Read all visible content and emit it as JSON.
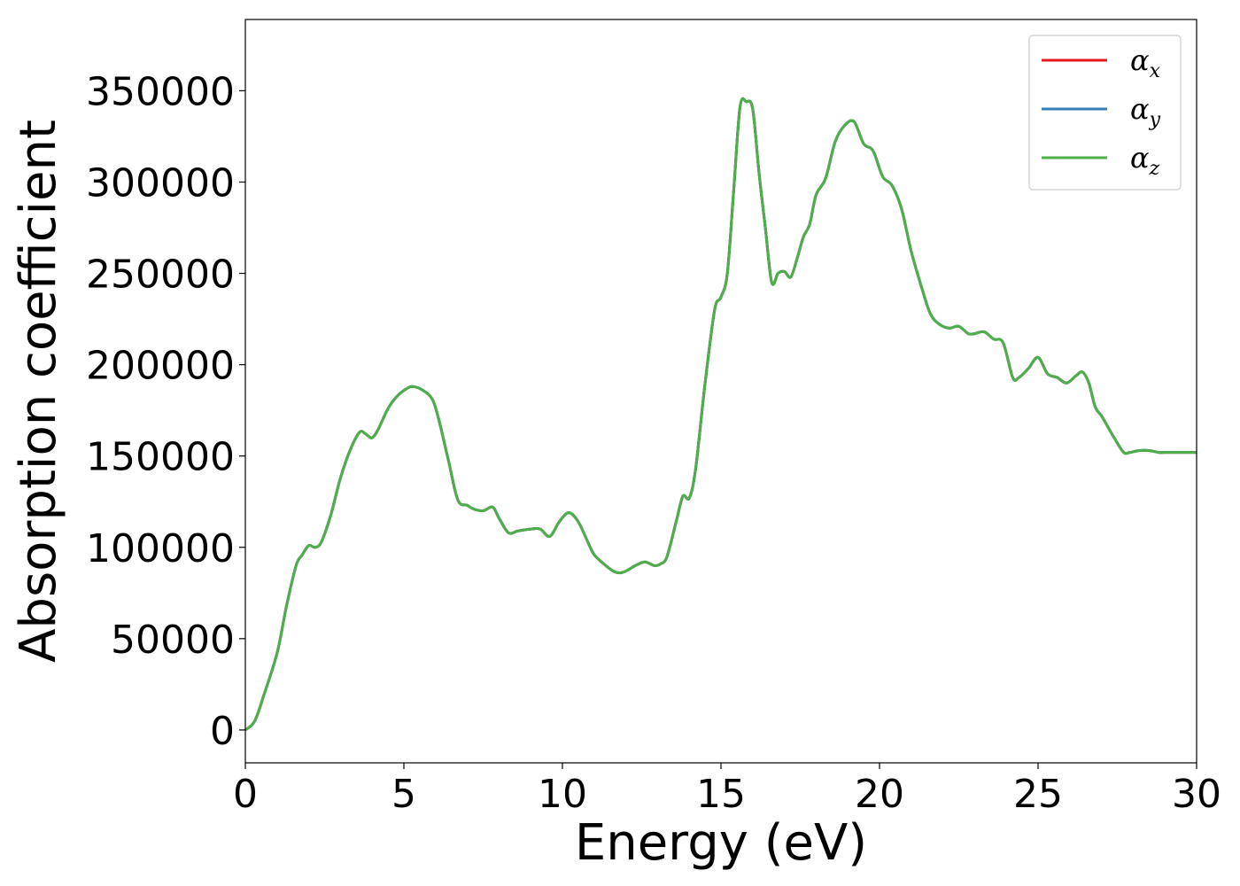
{
  "chart_data": {
    "type": "line",
    "xlabel": "Energy (eV)",
    "ylabel": "Absorption coefficient",
    "xlim": [
      0,
      30
    ],
    "ylim": [
      -18000,
      389000
    ],
    "xticks": [
      0,
      5,
      10,
      15,
      20,
      25,
      30
    ],
    "yticks": [
      0,
      50000,
      100000,
      150000,
      200000,
      250000,
      300000,
      350000
    ],
    "grid": false,
    "legend_position": "top-right",
    "series": [
      {
        "name": "αx",
        "symbol": "α",
        "subscript": "x",
        "color": "#e41a1c"
      },
      {
        "name": "αy",
        "symbol": "α",
        "subscript": "y",
        "color": "#377eb8"
      },
      {
        "name": "αz",
        "symbol": "α",
        "subscript": "z",
        "color": "#4daf4a"
      }
    ],
    "x": [
      0,
      0.3,
      0.6,
      1.0,
      1.3,
      1.6,
      1.8,
      2.0,
      2.2,
      2.4,
      2.7,
      3.0,
      3.3,
      3.6,
      3.8,
      4.0,
      4.2,
      4.5,
      4.8,
      5.1,
      5.3,
      5.6,
      5.9,
      6.1,
      6.4,
      6.7,
      7.0,
      7.2,
      7.5,
      7.8,
      8.0,
      8.3,
      8.6,
      9.0,
      9.3,
      9.6,
      9.9,
      10.2,
      10.5,
      10.8,
      11.0,
      11.3,
      11.6,
      11.8,
      12.0,
      12.3,
      12.6,
      12.9,
      13.1,
      13.3,
      13.6,
      13.8,
      14.0,
      14.2,
      14.5,
      14.8,
      15.0,
      15.2,
      15.4,
      15.6,
      15.8,
      16.0,
      16.2,
      16.4,
      16.6,
      16.8,
      17.0,
      17.2,
      17.4,
      17.6,
      17.8,
      18.0,
      18.3,
      18.6,
      18.9,
      19.2,
      19.5,
      19.8,
      20.1,
      20.4,
      20.7,
      21.0,
      21.3,
      21.6,
      21.9,
      22.2,
      22.5,
      22.8,
      23.0,
      23.3,
      23.6,
      23.9,
      24.2,
      24.4,
      24.7,
      25.0,
      25.3,
      25.6,
      25.9,
      26.2,
      26.4,
      26.6,
      26.8,
      27.0,
      27.2,
      27.4,
      27.7,
      27.9,
      28.2,
      28.5,
      28.8,
      29.1,
      29.4,
      29.7,
      30.0
    ],
    "values": [
      0,
      5000,
      20000,
      42000,
      68000,
      90000,
      96000,
      101000,
      100000,
      103000,
      118000,
      138000,
      153000,
      163000,
      162000,
      160000,
      165000,
      176000,
      183000,
      187000,
      188000,
      186000,
      181000,
      170000,
      148000,
      126000,
      123000,
      121000,
      120000,
      122000,
      116000,
      108000,
      109000,
      110000,
      110000,
      106000,
      114000,
      119000,
      114000,
      103000,
      96000,
      91000,
      87000,
      86000,
      87000,
      90000,
      92000,
      90000,
      91000,
      95000,
      115000,
      128000,
      127000,
      143000,
      190000,
      230000,
      237000,
      250000,
      295000,
      341000,
      344000,
      340000,
      305000,
      275000,
      245000,
      250000,
      251000,
      248000,
      258000,
      270000,
      277000,
      293000,
      302000,
      322000,
      331000,
      333000,
      321000,
      317000,
      303000,
      298000,
      285000,
      262000,
      244000,
      228000,
      222000,
      220000,
      221000,
      217000,
      217000,
      218000,
      214000,
      212000,
      193000,
      193000,
      198000,
      204000,
      195000,
      193000,
      190000,
      194000,
      196000,
      190000,
      177000,
      172000,
      166000,
      160000,
      152000,
      152000,
      153000,
      153000,
      152000,
      152000,
      152000,
      152000,
      152000
    ]
  }
}
